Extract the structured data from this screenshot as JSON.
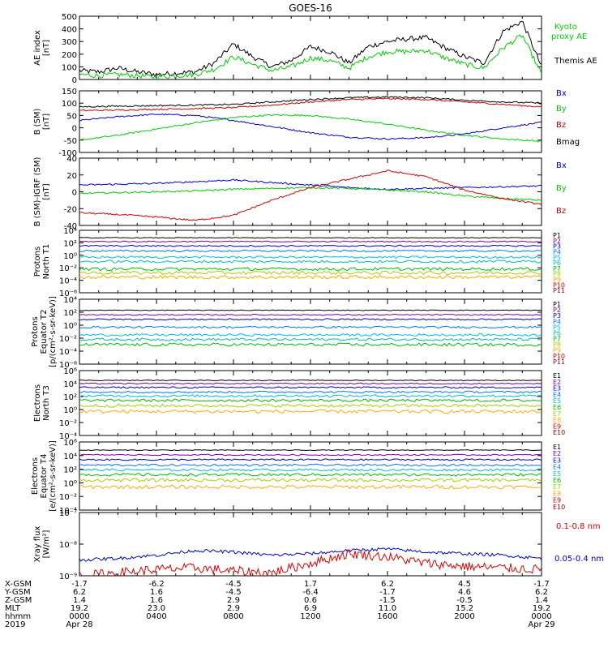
{
  "title": "GOES-16",
  "chart_data": [
    {
      "type": "line",
      "ylabel": "AE index\n[nT]",
      "ylim": [
        0,
        500
      ],
      "yticks": [
        "0",
        "100",
        "200",
        "300",
        "400",
        "500"
      ],
      "legend": [
        {
          "label": "Kyoto\nproxy AE",
          "color": "#00cc00"
        },
        {
          "label": "Themis AE",
          "color": "#000000"
        }
      ],
      "series": [
        {
          "name": "Themis AE",
          "color": "#000000",
          "x": [
            0,
            1,
            2,
            3,
            4,
            5,
            6,
            7,
            8,
            9,
            10,
            11,
            12,
            13,
            14,
            15,
            16,
            17,
            18,
            19,
            20,
            21,
            22,
            23,
            24
          ],
          "y": [
            70,
            60,
            90,
            60,
            40,
            50,
            60,
            130,
            280,
            180,
            100,
            150,
            260,
            220,
            130,
            260,
            300,
            320,
            330,
            250,
            180,
            130,
            380,
            460,
            100
          ]
        },
        {
          "name": "Kyoto proxy AE",
          "color": "#00cc00",
          "x": [
            0,
            1,
            2,
            3,
            4,
            5,
            6,
            7,
            8,
            9,
            10,
            11,
            12,
            13,
            14,
            15,
            16,
            17,
            18,
            19,
            20,
            21,
            22,
            23,
            24
          ],
          "y": [
            40,
            30,
            40,
            30,
            20,
            30,
            40,
            80,
            180,
            120,
            70,
            100,
            170,
            150,
            90,
            180,
            220,
            220,
            230,
            170,
            120,
            90,
            250,
            350,
            40
          ]
        }
      ]
    },
    {
      "type": "line",
      "ylabel": "B (SM)\n[nT]",
      "ylim": [
        -100,
        150
      ],
      "yticks": [
        "-100",
        "-50",
        "0",
        "50",
        "100",
        "150"
      ],
      "legend": [
        {
          "label": "Bx",
          "color": "#0000cc"
        },
        {
          "label": "By",
          "color": "#00cc00"
        },
        {
          "label": "Bz",
          "color": "#cc0000"
        },
        {
          "label": "Bmag",
          "color": "#000000"
        }
      ],
      "series": [
        {
          "name": "Bx",
          "color": "#0000cc",
          "x": [
            0,
            2,
            4,
            6,
            8,
            10,
            12,
            14,
            16,
            18,
            20,
            22,
            24
          ],
          "y": [
            30,
            45,
            55,
            50,
            30,
            5,
            -20,
            -38,
            -45,
            -40,
            -25,
            0,
            22
          ]
        },
        {
          "name": "By",
          "color": "#00cc00",
          "x": [
            0,
            2,
            4,
            6,
            8,
            10,
            12,
            14,
            16,
            18,
            20,
            22,
            24
          ],
          "y": [
            -50,
            -30,
            -5,
            20,
            42,
            52,
            50,
            35,
            15,
            -10,
            -30,
            -45,
            -55
          ]
        },
        {
          "name": "Bz",
          "color": "#cc0000",
          "x": [
            0,
            2,
            4,
            6,
            8,
            10,
            12,
            14,
            16,
            18,
            20,
            22,
            24
          ],
          "y": [
            70,
            72,
            75,
            78,
            82,
            92,
            105,
            115,
            118,
            115,
            105,
            95,
            85
          ]
        },
        {
          "name": "Bmag",
          "color": "#000000",
          "x": [
            0,
            2,
            4,
            6,
            8,
            10,
            12,
            14,
            16,
            18,
            20,
            22,
            24
          ],
          "y": [
            85,
            88,
            90,
            92,
            95,
            105,
            115,
            122,
            125,
            122,
            112,
            105,
            100
          ]
        }
      ]
    },
    {
      "type": "line",
      "ylabel": "B (SM)-IGRF (SM)\n[nT]",
      "ylim": [
        -40,
        40
      ],
      "yticks": [
        "-40",
        "-20",
        "0",
        "20",
        "40"
      ],
      "legend": [
        {
          "label": "Bx",
          "color": "#0000cc"
        },
        {
          "label": "By",
          "color": "#00cc00"
        },
        {
          "label": "Bz",
          "color": "#cc0000"
        }
      ],
      "series": [
        {
          "name": "Bx",
          "color": "#0000cc",
          "x": [
            0,
            2,
            4,
            6,
            8,
            10,
            12,
            14,
            16,
            18,
            20,
            22,
            24
          ],
          "y": [
            8,
            9,
            10,
            12,
            14,
            11,
            8,
            5,
            3,
            4,
            5,
            6,
            7
          ]
        },
        {
          "name": "By",
          "color": "#00cc00",
          "x": [
            0,
            2,
            4,
            6,
            8,
            10,
            12,
            14,
            16,
            18,
            20,
            22,
            24
          ],
          "y": [
            -2,
            -1,
            0,
            1,
            3,
            4,
            5,
            4,
            2,
            0,
            -5,
            -8,
            -10
          ]
        },
        {
          "name": "Bz",
          "color": "#cc0000",
          "x": [
            0,
            2,
            4,
            6,
            8,
            10,
            12,
            14,
            16,
            18,
            20,
            22,
            24
          ],
          "y": [
            -25,
            -27,
            -30,
            -34,
            -28,
            -10,
            5,
            15,
            25,
            18,
            2,
            -8,
            -15
          ]
        }
      ]
    },
    {
      "type": "line",
      "ylabel": "Protons\nNorth T1",
      "yscale": "log",
      "ylim": [
        -6,
        4
      ],
      "yticks": [
        "10⁻⁶",
        "10⁻⁴",
        "10⁻²",
        "10⁰",
        "10²",
        "10⁴"
      ],
      "legend": [
        {
          "label": "P1",
          "color": "#000000"
        },
        {
          "label": "P2",
          "color": "#7700aa"
        },
        {
          "label": "P3",
          "color": "#0000cc"
        },
        {
          "label": "P4",
          "color": "#0077ff"
        },
        {
          "label": "P5",
          "color": "#00bbdd"
        },
        {
          "label": "P6",
          "color": "#00bbbb"
        },
        {
          "label": "P7",
          "color": "#00bb00"
        },
        {
          "label": "P8",
          "color": "#aacc00"
        },
        {
          "label": "P9",
          "color": "#ffaa00"
        },
        {
          "label": "P10",
          "color": "#cc0000"
        },
        {
          "label": "P11",
          "color": "#880000"
        }
      ],
      "series": [
        {
          "name": "P1",
          "color": "#000000",
          "level": 2.8
        },
        {
          "name": "P2",
          "color": "#7700aa",
          "level": 2.2
        },
        {
          "name": "P3",
          "color": "#0000cc",
          "level": 1.5
        },
        {
          "name": "P4",
          "color": "#0077ff",
          "level": 0.7
        },
        {
          "name": "P5",
          "color": "#00bbdd",
          "level": -0.3
        },
        {
          "name": "P6",
          "color": "#00bbbb",
          "level": -1.0
        },
        {
          "name": "P7",
          "color": "#00bb00",
          "level": -2.2
        },
        {
          "name": "P8",
          "color": "#aacc00",
          "level": -2.8
        },
        {
          "name": "P9",
          "color": "#ffaa00",
          "level": -3.5
        }
      ]
    },
    {
      "type": "line",
      "ylabel": "Protons\nEquator T2\n[p/(cm²-s-sr-keV)]",
      "yscale": "log",
      "ylim": [
        -6,
        4
      ],
      "yticks": [
        "10⁻⁶",
        "10⁻⁴",
        "10⁻²",
        "10⁰",
        "10²",
        "10⁴"
      ],
      "legend": [
        {
          "label": "P1",
          "color": "#000000"
        },
        {
          "label": "P2",
          "color": "#7700aa"
        },
        {
          "label": "P3",
          "color": "#0000cc"
        },
        {
          "label": "P4",
          "color": "#0077ff"
        },
        {
          "label": "P5",
          "color": "#00bbdd"
        },
        {
          "label": "P6",
          "color": "#00bbbb"
        },
        {
          "label": "P7",
          "color": "#00bb00"
        },
        {
          "label": "P8",
          "color": "#aacc00"
        },
        {
          "label": "P9",
          "color": "#ffaa00"
        },
        {
          "label": "P10",
          "color": "#cc0000"
        },
        {
          "label": "P11",
          "color": "#880000"
        }
      ],
      "series": [
        {
          "name": "P1",
          "color": "#000000",
          "level": 2.3
        },
        {
          "name": "P2",
          "color": "#7700aa",
          "level": 1.6
        },
        {
          "name": "P3",
          "color": "#0000cc",
          "level": 0.9
        },
        {
          "name": "P4",
          "color": "#0077ff",
          "level": -0.3
        },
        {
          "name": "P5",
          "color": "#00bbdd",
          "level": -1.5
        },
        {
          "name": "P6",
          "color": "#00bbbb",
          "level": -2.2
        },
        {
          "name": "P7",
          "color": "#00bb00",
          "level": -3.0
        }
      ]
    },
    {
      "type": "line",
      "ylabel": "Electrons\nNorth T3",
      "yscale": "log",
      "ylim": [
        -4,
        6
      ],
      "yticks": [
        "10⁻⁴",
        "10⁻²",
        "10⁰",
        "10²",
        "10⁴",
        "10⁶"
      ],
      "legend": [
        {
          "label": "E1",
          "color": "#000000"
        },
        {
          "label": "E2",
          "color": "#7700aa"
        },
        {
          "label": "E3",
          "color": "#0000cc"
        },
        {
          "label": "E4",
          "color": "#0077ff"
        },
        {
          "label": "E5",
          "color": "#00bbdd"
        },
        {
          "label": "E6",
          "color": "#00bb00"
        },
        {
          "label": "E7",
          "color": "#aacc00"
        },
        {
          "label": "E8",
          "color": "#ffaa00"
        },
        {
          "label": "E9",
          "color": "#cc0000"
        },
        {
          "label": "E10",
          "color": "#880000"
        }
      ],
      "series": [
        {
          "name": "E1",
          "color": "#000000",
          "level": 4.5
        },
        {
          "name": "E2",
          "color": "#7700aa",
          "level": 4.0
        },
        {
          "name": "E3",
          "color": "#0000cc",
          "level": 3.4
        },
        {
          "name": "E4",
          "color": "#0077ff",
          "level": 2.7
        },
        {
          "name": "E5",
          "color": "#00bbdd",
          "level": 2.1
        },
        {
          "name": "E6",
          "color": "#00bb00",
          "level": 1.4
        },
        {
          "name": "E7",
          "color": "#aacc00",
          "level": 0.6
        },
        {
          "name": "E8",
          "color": "#ffaa00",
          "level": -0.3
        }
      ]
    },
    {
      "type": "line",
      "ylabel": "Electrons\nEquator T4\n[e/(cm²-s-sr-keV)]",
      "yscale": "log",
      "ylim": [
        -4,
        6
      ],
      "yticks": [
        "10⁻⁴",
        "10⁻²",
        "10⁰",
        "10²",
        "10⁴",
        "10⁶"
      ],
      "legend": [
        {
          "label": "E1",
          "color": "#000000"
        },
        {
          "label": "E2",
          "color": "#7700aa"
        },
        {
          "label": "E3",
          "color": "#0000cc"
        },
        {
          "label": "E4",
          "color": "#0077ff"
        },
        {
          "label": "E5",
          "color": "#00bbdd"
        },
        {
          "label": "E6",
          "color": "#00bb00"
        },
        {
          "label": "E7",
          "color": "#aacc00"
        },
        {
          "label": "E8",
          "color": "#ffaa00"
        },
        {
          "label": "E9",
          "color": "#cc0000"
        },
        {
          "label": "E10",
          "color": "#880000"
        }
      ],
      "series": [
        {
          "name": "E1",
          "color": "#000000",
          "level": 4.8
        },
        {
          "name": "E2",
          "color": "#7700aa",
          "level": 4.1
        },
        {
          "name": "E3",
          "color": "#0000cc",
          "level": 3.4
        },
        {
          "name": "E4",
          "color": "#0077ff",
          "level": 2.6
        },
        {
          "name": "E5",
          "color": "#00bbdd",
          "level": 1.9
        },
        {
          "name": "E6",
          "color": "#00bb00",
          "level": 1.2
        },
        {
          "name": "E7",
          "color": "#aacc00",
          "level": 0.4
        },
        {
          "name": "E8",
          "color": "#ffaa00",
          "level": -0.6
        }
      ]
    },
    {
      "type": "line",
      "ylabel": "Xray flux\n[W/m²]",
      "yscale": "log",
      "ylim": [
        -9,
        -7
      ],
      "yticks": [
        "10⁻⁹",
        "10⁻⁸",
        "10⁻⁷"
      ],
      "legend": [
        {
          "label": "0.1-0.8 nm",
          "color": "#dd0000"
        },
        {
          "label": "0.05-0.4 nm",
          "color": "#0000cc"
        }
      ],
      "series": [
        {
          "name": "0.05-0.4 nm",
          "color": "#0000cc",
          "x": [
            0,
            2,
            4,
            6,
            8,
            10,
            12,
            14,
            16,
            18,
            20,
            22,
            24
          ],
          "y": [
            -8.5,
            -8.45,
            -8.35,
            -8.2,
            -8.25,
            -8.35,
            -8.3,
            -8.2,
            -8.15,
            -8.25,
            -8.3,
            -8.35,
            -8.45
          ]
        },
        {
          "name": "0.1-0.8 nm",
          "color": "#dd0000",
          "x": [
            0,
            2,
            4,
            6,
            8,
            10,
            12,
            14,
            16,
            18,
            20,
            22,
            24
          ],
          "y": [
            -9.0,
            -8.9,
            -8.8,
            -8.75,
            -8.85,
            -8.9,
            -8.6,
            -8.3,
            -8.4,
            -8.6,
            -8.7,
            -8.75,
            -8.8
          ]
        }
      ]
    }
  ],
  "ephemeris": {
    "rows": [
      "X-GSM",
      "Y-GSM",
      "Z-GSM",
      "MLT",
      "hhmm",
      "2019"
    ],
    "columns": [
      [
        "-1.7",
        "6.2",
        "1.4",
        "19.2",
        "0000",
        "Apr 28"
      ],
      [
        "-6.2",
        "1.6",
        "1.6",
        "23.0",
        "0400",
        ""
      ],
      [
        "-4.5",
        "-4.5",
        "2.9",
        "2.9",
        "0800",
        ""
      ],
      [
        "1.7",
        "-6.4",
        "0.6",
        "6.9",
        "1200",
        ""
      ],
      [
        "6.2",
        "-1.7",
        "-1.5",
        "11.0",
        "1600",
        ""
      ],
      [
        "4.5",
        "4.6",
        "-0.5",
        "15.2",
        "2000",
        ""
      ],
      [
        "-1.7",
        "6.2",
        "1.4",
        "19.2",
        "0000",
        "Apr 29"
      ]
    ]
  }
}
